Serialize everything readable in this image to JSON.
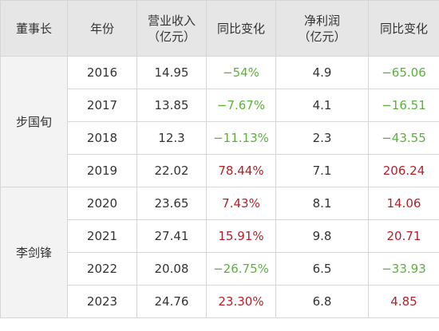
{
  "colors": {
    "header_bg": "#e6e6e6",
    "border": "#d6d6d6",
    "increase": "#b3202a",
    "decrease": "#5bb13b"
  },
  "headers": {
    "chairman": "董事长",
    "year": "年份",
    "revenue_line1": "营业收入",
    "revenue_line2": "（亿元）",
    "revenue_yoy": "同比变化",
    "profit_line1": "净利润",
    "profit_line2": "（亿元）",
    "profit_yoy": "同比变化"
  },
  "groups": [
    {
      "chairman": "步国旬",
      "rows": [
        {
          "year": "2016",
          "revenue": "14.95",
          "revenue_yoy": "−54%",
          "profit": "4.9",
          "profit_yoy": "−65.06"
        },
        {
          "year": "2017",
          "revenue": "13.85",
          "revenue_yoy": "−7.67%",
          "profit": "4.1",
          "profit_yoy": "−16.51"
        },
        {
          "year": "2018",
          "revenue": "12.3",
          "revenue_yoy": "−11.13%",
          "profit": "2.3",
          "profit_yoy": "−43.55"
        },
        {
          "year": "2019",
          "revenue": "22.02",
          "revenue_yoy": "78.44%",
          "profit": "7.1",
          "profit_yoy": "206.24"
        }
      ]
    },
    {
      "chairman": "李剑锋",
      "rows": [
        {
          "year": "2020",
          "revenue": "23.65",
          "revenue_yoy": "7.43%",
          "profit": "8.1",
          "profit_yoy": "14.06"
        },
        {
          "year": "2021",
          "revenue": "27.41",
          "revenue_yoy": "15.91%",
          "profit": "9.8",
          "profit_yoy": "20.71"
        },
        {
          "year": "2022",
          "revenue": "20.08",
          "revenue_yoy": "−26.75%",
          "profit": "6.5",
          "profit_yoy": "−33.93"
        },
        {
          "year": "2023",
          "revenue": "24.76",
          "revenue_yoy": "23.30%",
          "profit": "6.8",
          "profit_yoy": "4.85"
        }
      ]
    }
  ]
}
